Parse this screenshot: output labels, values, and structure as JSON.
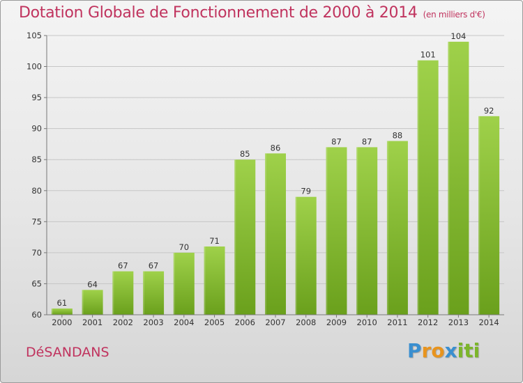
{
  "header": {
    "title": "Dotation Globale de Fonctionnement de 2000 à 2014",
    "subtitle": "(en milliers d'€)"
  },
  "footer": {
    "commune": "DéSANDANS",
    "logo_letters": [
      "P",
      "r",
      "o",
      "x",
      "i",
      "t",
      "i"
    ]
  },
  "colors": {
    "title": "#c0335e",
    "bar_light": "#9fd14a",
    "bar_dark": "#6aa01c",
    "logo": [
      "#3a8fd0",
      "#e8941e",
      "#e8941e",
      "#3a8fd0",
      "#7cb52b",
      "#7cb52b",
      "#7cb52b"
    ]
  },
  "chart_data": {
    "type": "bar",
    "title": "Dotation Globale de Fonctionnement de 2000 à 2014",
    "subtitle": "(en milliers d'€)",
    "categories": [
      "2000",
      "2001",
      "2002",
      "2003",
      "2004",
      "2005",
      "2006",
      "2007",
      "2008",
      "2009",
      "2010",
      "2011",
      "2012",
      "2013",
      "2014"
    ],
    "values": [
      61,
      64,
      67,
      67,
      70,
      71,
      85,
      86,
      79,
      87,
      87,
      88,
      101,
      104,
      92
    ],
    "ylim": [
      60,
      105
    ],
    "yticks": [
      60,
      65,
      70,
      75,
      80,
      85,
      90,
      95,
      100,
      105
    ],
    "grid": true,
    "xlabel": "",
    "ylabel": ""
  }
}
